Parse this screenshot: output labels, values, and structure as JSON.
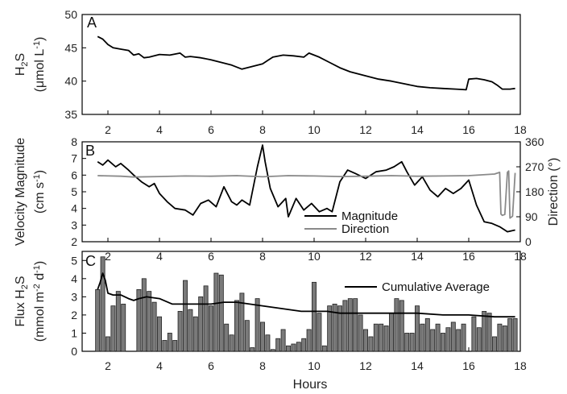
{
  "chart_data": [
    {
      "panel": "A",
      "type": "line",
      "ylabel": "H2S (μmol L-1)",
      "ylabel_parts": {
        "h": "H",
        "sub": "2",
        "s": "S",
        "unit_open": "(",
        "unit_mu": "μmol L",
        "unit_sup": "-1",
        "unit_close": ")"
      },
      "xlim": [
        1,
        18
      ],
      "ylim": [
        35,
        50
      ],
      "yticks": [
        35,
        40,
        45,
        50
      ],
      "xticks": [
        2,
        4,
        6,
        8,
        10,
        12,
        14,
        16,
        18
      ],
      "series": [
        {
          "color": "#000000",
          "x": [
            1.6,
            1.8,
            2.0,
            2.2,
            2.5,
            2.8,
            3.0,
            3.2,
            3.4,
            3.6,
            4.0,
            4.4,
            4.8,
            5.0,
            5.2,
            5.6,
            6.0,
            6.4,
            6.8,
            7.0,
            7.2,
            7.6,
            8.0,
            8.2,
            8.4,
            8.8,
            9.2,
            9.6,
            9.8,
            10.0,
            10.2,
            10.6,
            11.0,
            11.4,
            12.0,
            12.5,
            13.0,
            13.5,
            14.0,
            14.5,
            15.0,
            15.5,
            15.9,
            16.0,
            16.3,
            16.6,
            16.9,
            17.1,
            17.3,
            17.6,
            17.8
          ],
          "y": [
            46.7,
            46.3,
            45.5,
            45.0,
            44.8,
            44.6,
            43.9,
            44.1,
            43.5,
            43.6,
            44.0,
            43.9,
            44.2,
            43.6,
            43.7,
            43.5,
            43.2,
            42.8,
            42.4,
            42.1,
            41.8,
            42.2,
            42.6,
            43.1,
            43.6,
            43.9,
            43.8,
            43.6,
            44.2,
            43.9,
            43.6,
            42.8,
            42.0,
            41.4,
            40.8,
            40.3,
            40.0,
            39.6,
            39.2,
            39.0,
            38.9,
            38.8,
            38.7,
            40.3,
            40.4,
            40.2,
            39.9,
            39.4,
            38.8,
            38.8,
            38.9
          ]
        }
      ]
    },
    {
      "panel": "B",
      "type": "line",
      "ylabel": "Velocity Magnitude (cm s-1)",
      "ylabel_left_parts": {
        "top": "Velocity Magnitude",
        "unit_open": "(cm s",
        "unit_sup": "-1",
        "unit_close": ")"
      },
      "ylabel_right": "Direction (°)",
      "xlim": [
        1,
        18
      ],
      "ylim": [
        2,
        8
      ],
      "yticks": [
        2,
        3,
        4,
        5,
        6,
        7,
        8
      ],
      "ylim_right": [
        0,
        360
      ],
      "yticks_right": [
        0,
        90,
        180,
        270,
        360
      ],
      "xticks": [
        2,
        4,
        6,
        8,
        10,
        12,
        14,
        16,
        18
      ],
      "legend": [
        "Magnitude",
        "Direction"
      ],
      "legend_position": "lower-right",
      "series": [
        {
          "name": "Magnitude",
          "color": "#000000",
          "axis": "left",
          "x": [
            1.6,
            1.8,
            2.0,
            2.3,
            2.5,
            2.8,
            3.0,
            3.3,
            3.6,
            3.8,
            4.0,
            4.3,
            4.6,
            5.0,
            5.3,
            5.6,
            5.9,
            6.2,
            6.5,
            6.8,
            7.0,
            7.2,
            7.5,
            7.8,
            8.0,
            8.1,
            8.3,
            8.6,
            8.9,
            9.0,
            9.3,
            9.6,
            9.9,
            10.2,
            10.5,
            10.7,
            11.0,
            11.3,
            11.6,
            12.0,
            12.4,
            12.8,
            13.1,
            13.4,
            13.6,
            13.9,
            14.2,
            14.5,
            14.8,
            15.1,
            15.4,
            15.7,
            16.0,
            16.3,
            16.6,
            16.9,
            17.2,
            17.5,
            17.8
          ],
          "y": [
            6.8,
            6.6,
            6.9,
            6.5,
            6.7,
            6.3,
            6.0,
            5.6,
            5.3,
            5.5,
            4.9,
            4.4,
            4.0,
            3.9,
            3.6,
            4.3,
            4.5,
            4.1,
            5.3,
            4.4,
            4.2,
            4.5,
            4.2,
            6.5,
            7.8,
            6.8,
            5.2,
            4.1,
            4.6,
            3.5,
            4.6,
            3.9,
            4.3,
            3.8,
            4.0,
            3.8,
            5.6,
            6.3,
            6.1,
            5.8,
            6.2,
            6.3,
            6.5,
            6.8,
            6.2,
            5.4,
            5.9,
            5.1,
            4.7,
            5.2,
            4.9,
            5.2,
            5.7,
            4.2,
            3.2,
            3.1,
            2.9,
            2.6,
            2.7
          ]
        },
        {
          "name": "Direction",
          "color": "#8a8a8a",
          "axis": "right",
          "x": [
            1.6,
            2.5,
            3.0,
            4.0,
            5.0,
            6.0,
            7.0,
            8.0,
            9.0,
            10.0,
            11.0,
            12.0,
            13.0,
            14.0,
            15.0,
            16.0,
            17.0,
            17.2,
            17.25,
            17.3,
            17.4,
            17.5,
            17.55,
            17.6,
            17.7,
            17.8
          ],
          "y": [
            238,
            236,
            233,
            235,
            237,
            236,
            238,
            234,
            238,
            237,
            235,
            236,
            238,
            236,
            237,
            238,
            244,
            250,
            100,
            95,
            98,
            250,
            255,
            85,
            92,
            248
          ]
        }
      ]
    },
    {
      "panel": "C",
      "type": "bar",
      "ylabel": "Flux H2S (mmol m-2 d-1)",
      "ylabel_parts": {
        "flux": "Flux H",
        "sub": "2",
        "s": "S",
        "unit_open": "(mmol m",
        "sup1": "-2",
        "mid": " d",
        "sup2": "-1",
        "unit_close": ")"
      },
      "xlabel": "Hours",
      "xlim": [
        1,
        18
      ],
      "ylim": [
        0,
        5.5
      ],
      "yticks": [
        0,
        1,
        2,
        3,
        4,
        5
      ],
      "xticks": [
        2,
        4,
        6,
        8,
        10,
        12,
        14,
        16,
        18
      ],
      "legend": [
        "Cumulative Average"
      ],
      "legend_position": "top-right",
      "bar_color": "#7a7a7a",
      "bar_width_hours": 0.16,
      "bars": {
        "x": [
          1.6,
          1.8,
          2.0,
          2.2,
          2.4,
          2.6,
          3.2,
          3.4,
          3.6,
          3.8,
          4.0,
          4.2,
          4.4,
          4.6,
          4.8,
          5.0,
          5.2,
          5.4,
          5.6,
          5.8,
          6.0,
          6.2,
          6.4,
          6.6,
          6.8,
          7.0,
          7.2,
          7.4,
          7.6,
          7.8,
          8.0,
          8.2,
          8.4,
          8.6,
          8.8,
          9.0,
          9.2,
          9.4,
          9.6,
          9.8,
          10.0,
          10.2,
          10.4,
          10.6,
          10.8,
          11.0,
          11.2,
          11.4,
          11.6,
          11.8,
          12.0,
          12.2,
          12.4,
          12.6,
          12.8,
          13.0,
          13.2,
          13.4,
          13.6,
          13.8,
          14.0,
          14.2,
          14.4,
          14.6,
          14.8,
          15.0,
          15.2,
          15.4,
          15.6,
          15.8,
          16.2,
          16.4,
          16.6,
          16.8,
          17.0,
          17.2,
          17.4,
          17.6,
          17.8
        ],
        "values": [
          3.4,
          5.2,
          0.8,
          2.5,
          3.3,
          2.6,
          3.4,
          4.0,
          3.3,
          2.7,
          1.9,
          0.6,
          1.0,
          0.6,
          2.2,
          3.9,
          2.3,
          1.9,
          3.0,
          3.6,
          2.5,
          4.3,
          4.2,
          1.5,
          0.9,
          2.8,
          3.2,
          1.7,
          0.2,
          2.9,
          1.6,
          0.9,
          0.1,
          0.7,
          1.2,
          0.3,
          0.4,
          0.5,
          0.7,
          1.2,
          3.8,
          2.1,
          0.3,
          2.5,
          2.6,
          2.5,
          2.8,
          2.9,
          2.9,
          2.0,
          1.2,
          0.8,
          1.5,
          1.5,
          1.4,
          2.1,
          2.9,
          2.8,
          1.0,
          1.0,
          2.5,
          1.5,
          1.8,
          1.2,
          1.5,
          1.0,
          1.3,
          1.6,
          1.2,
          1.5,
          1.9,
          1.3,
          2.2,
          2.1,
          0.8,
          1.5,
          1.4,
          1.8,
          1.8
        ]
      },
      "series": [
        {
          "name": "Cumulative Average",
          "color": "#000000",
          "x": [
            1.6,
            1.7,
            1.8,
            1.9,
            2.0,
            2.2,
            2.5,
            2.8,
            3.0,
            3.2,
            3.5,
            4.0,
            4.5,
            5.0,
            5.5,
            6.0,
            6.5,
            7.0,
            7.5,
            8.0,
            8.5,
            9.0,
            9.5,
            10.0,
            10.5,
            11.0,
            11.5,
            12.0,
            13.0,
            14.0,
            15.0,
            16.0,
            17.0,
            17.8
          ],
          "y": [
            3.4,
            3.8,
            4.3,
            3.9,
            3.2,
            3.1,
            3.1,
            2.9,
            2.8,
            2.9,
            3.0,
            2.9,
            2.6,
            2.6,
            2.6,
            2.6,
            2.7,
            2.7,
            2.6,
            2.5,
            2.4,
            2.3,
            2.2,
            2.2,
            2.2,
            2.1,
            2.1,
            2.1,
            2.1,
            2.1,
            2.0,
            2.0,
            1.9,
            1.9
          ]
        }
      ]
    }
  ]
}
